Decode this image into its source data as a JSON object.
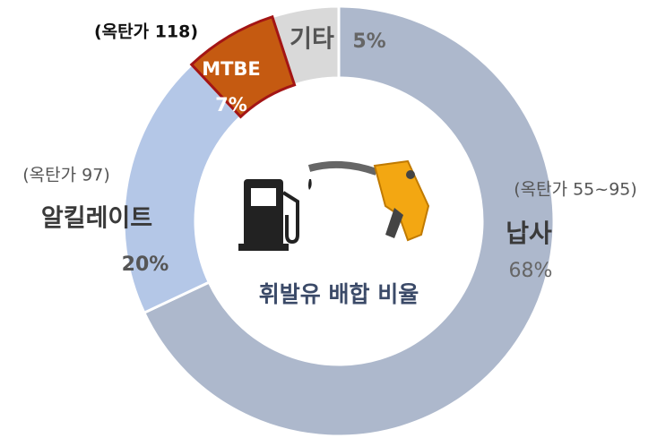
{
  "chart_data": {
    "type": "donut",
    "title": "휘발유 배합 비율",
    "categories": [
      "납사",
      "알킬레이트",
      "MTBE",
      "기타"
    ],
    "values": [
      68,
      20,
      7,
      5
    ],
    "value_labels": [
      "68%",
      "20%",
      "7%",
      "5%"
    ],
    "colors": [
      "#adb8cc",
      "#b4c7e7",
      "#c55a11",
      "#d9d9d9"
    ],
    "annotations": [
      "(옥탄가 55~95)",
      "(옥탄가 97)",
      "(옥탄가 118)"
    ]
  }
}
